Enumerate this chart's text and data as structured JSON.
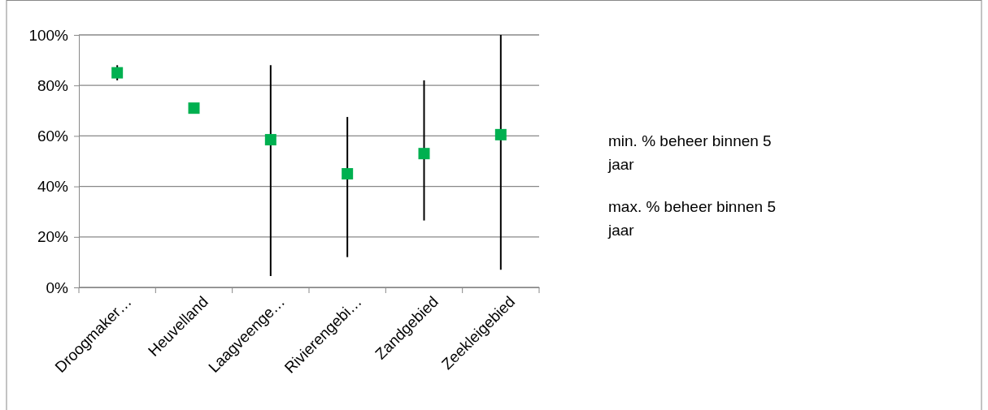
{
  "chart_data": {
    "type": "scatter",
    "categories": [
      "Droogmaker…",
      "Heuvelland",
      "Laagveenge…",
      "Rivierengebi…",
      "Zandgebied",
      "Zeekleigebied"
    ],
    "series": [
      {
        "color": "#00b050",
        "values": [
          85,
          71,
          58.5,
          45,
          53,
          60.5
        ],
        "errors": [
          [
            82,
            88
          ],
          null,
          [
            4.5,
            88
          ],
          [
            12,
            67.5
          ],
          [
            26.5,
            82
          ],
          [
            7,
            100
          ]
        ]
      }
    ],
    "marker": "square",
    "ylim": [
      0,
      100
    ],
    "yticks": [
      {
        "value": 0,
        "label": "0%"
      },
      {
        "value": 20,
        "label": "20%"
      },
      {
        "value": 40,
        "label": "40%"
      },
      {
        "value": 60,
        "label": "60%"
      },
      {
        "value": 80,
        "label": "80%"
      },
      {
        "value": 100,
        "label": "100%"
      }
    ],
    "grid": "y",
    "annotations": [
      "min. % beheer binnen 5 jaar",
      "max. % beheer binnen 5 jaar"
    ]
  }
}
